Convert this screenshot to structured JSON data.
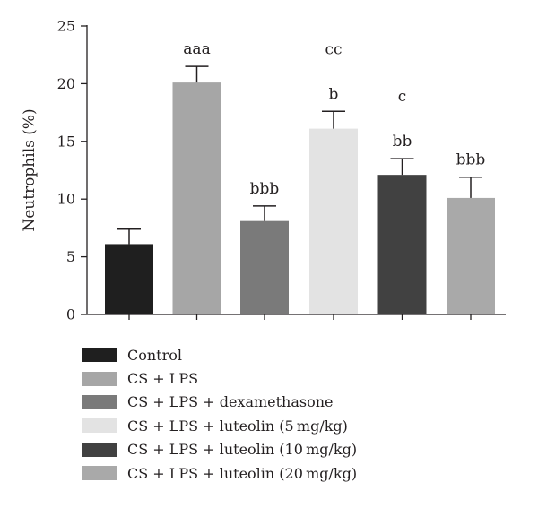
{
  "chart_data": {
    "type": "bar",
    "ylabel": "Neutrophils (%)",
    "ylim": [
      0,
      25
    ],
    "yticks": [
      "0",
      "5",
      "10",
      "15",
      "20",
      "25"
    ],
    "legend_position": "bottom",
    "categories": [
      "Control",
      "CS + LPS",
      "CS + LPS + dexamethasone",
      "CS + LPS + luteolin (5 mg/kg)",
      "CS + LPS + luteolin (10 mg/kg)",
      "CS + LPS + luteolin (20 mg/kg)"
    ],
    "values": [
      6.1,
      20.1,
      8.1,
      16.1,
      12.1,
      10.1
    ],
    "errors": [
      1.3,
      1.4,
      1.3,
      1.5,
      1.4,
      1.8
    ],
    "colors": [
      "#1f1f1f",
      "#a6a6a6",
      "#7a7a7a",
      "#e3e3e3",
      "#414141",
      "#a9a9a9"
    ],
    "annotations": [
      [],
      [
        "aaa"
      ],
      [
        "bbb"
      ],
      [
        "b",
        "cc"
      ],
      [
        "bb",
        "c"
      ],
      [
        "bbb"
      ]
    ]
  }
}
